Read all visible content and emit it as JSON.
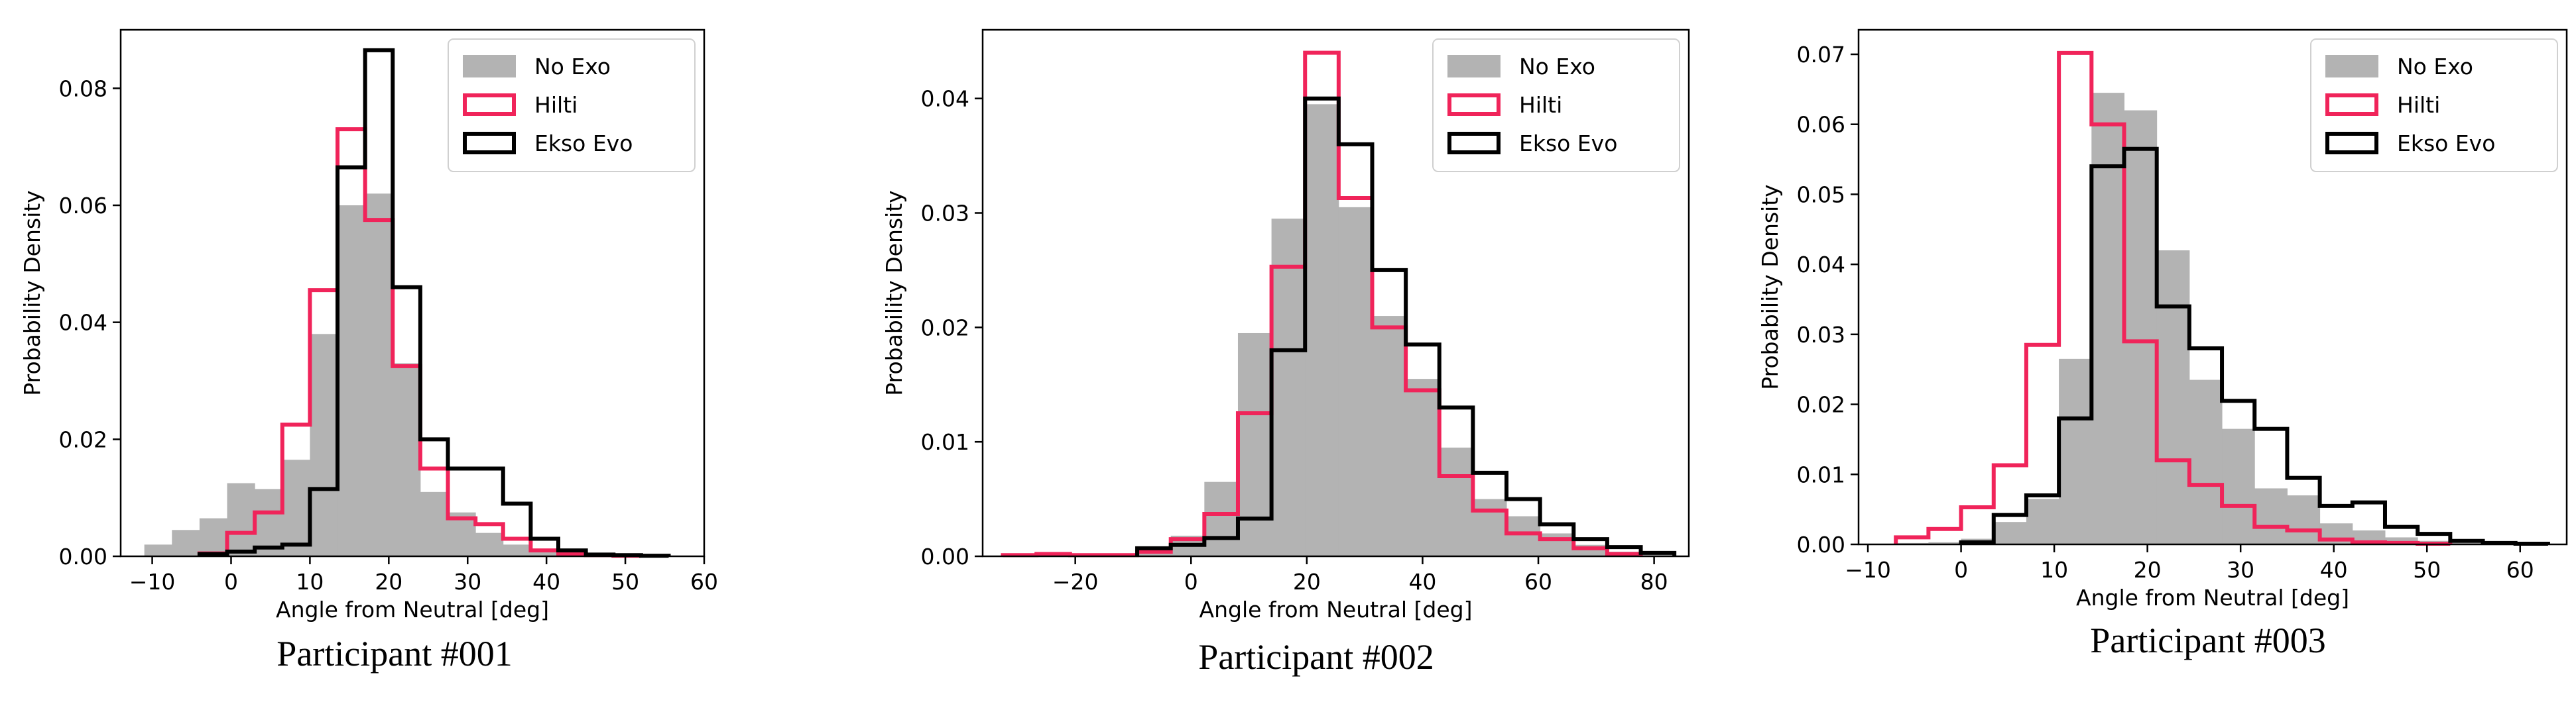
{
  "figure": {
    "colors": {
      "no_exo": "#b3b3b3",
      "hilti": "#f0245a",
      "ekso_evo": "#000000",
      "axis": "#000000"
    }
  },
  "chart_data": [
    {
      "type": "histogram",
      "caption": "Participant #001",
      "xlabel": "Angle from Neutral [deg]",
      "ylabel": "Probability Density",
      "xlim": [
        -14,
        60
      ],
      "ylim": [
        0,
        0.09
      ],
      "xticks": [
        -10,
        0,
        10,
        20,
        30,
        40,
        50,
        60
      ],
      "yticks": [
        0.0,
        0.02,
        0.04,
        0.06,
        0.08
      ],
      "ytick_labels": [
        "0.00",
        "0.02",
        "0.04",
        "0.06",
        "0.08"
      ],
      "legend_position": "upper right",
      "series": [
        {
          "name": "No Exo",
          "style": "filled",
          "color": "#b3b3b3",
          "edges": [
            -11,
            -7.5,
            -4,
            -0.5,
            3,
            6.5,
            10,
            13.5,
            17,
            20.5,
            24,
            27.5,
            31,
            34.5,
            38,
            41.5,
            45,
            48.5,
            52,
            55.5
          ],
          "values": [
            0.002,
            0.0045,
            0.0065,
            0.0125,
            0.0115,
            0.0165,
            0.038,
            0.06,
            0.062,
            0.033,
            0.011,
            0.0075,
            0.004,
            0.002,
            0.001,
            0.0005,
            0.0003,
            0.0002,
            0.0001
          ]
        },
        {
          "name": "Hilti",
          "style": "step",
          "color": "#f0245a",
          "edges": [
            -4,
            -0.5,
            3,
            6.5,
            10,
            13.5,
            17,
            20.5,
            24,
            27.5,
            31,
            34.5,
            38,
            41.5,
            45,
            48.5,
            52
          ],
          "values": [
            0.0005,
            0.004,
            0.0075,
            0.0225,
            0.0455,
            0.073,
            0.0575,
            0.0325,
            0.015,
            0.0065,
            0.0055,
            0.003,
            0.001,
            0.0004,
            0.0002,
            0.0001
          ]
        },
        {
          "name": "Ekso Evo",
          "style": "step",
          "color": "#000000",
          "edges": [
            -4,
            -0.5,
            3,
            6.5,
            10,
            13.5,
            17,
            20.5,
            24,
            27.5,
            31,
            34.5,
            38,
            41.5,
            45,
            48.5,
            52,
            55.5
          ],
          "values": [
            0.0004,
            0.0008,
            0.0015,
            0.002,
            0.0115,
            0.0665,
            0.0865,
            0.046,
            0.02,
            0.015,
            0.015,
            0.009,
            0.003,
            0.001,
            0.0003,
            0.0002,
            0.0001
          ]
        }
      ]
    },
    {
      "type": "histogram",
      "caption": "Participant #002",
      "xlabel": "Angle from Neutral [deg]",
      "ylabel": "Probability Density",
      "xlim": [
        -36,
        86
      ],
      "ylim": [
        0,
        0.046
      ],
      "xticks": [
        -20,
        0,
        20,
        40,
        60,
        80
      ],
      "yticks": [
        0.0,
        0.01,
        0.02,
        0.03,
        0.04
      ],
      "ytick_labels": [
        "0.00",
        "0.01",
        "0.02",
        "0.03",
        "0.04"
      ],
      "legend_position": "upper right",
      "series": [
        {
          "name": "No Exo",
          "style": "filled",
          "color": "#b3b3b3",
          "edges": [
            -32.5,
            -26.7,
            -20.9,
            -15.1,
            -9.3,
            -3.5,
            2.3,
            8.1,
            13.9,
            19.7,
            25.5,
            31.3,
            37.1,
            42.9,
            48.7,
            54.5,
            60.3,
            66.1,
            71.9,
            77.7,
            83.5
          ],
          "values": [
            0.0001,
            0.0001,
            0.0001,
            0.0001,
            0.0005,
            0.0018,
            0.0065,
            0.0195,
            0.0295,
            0.0395,
            0.0305,
            0.021,
            0.0155,
            0.0095,
            0.005,
            0.0035,
            0.002,
            0.001,
            0.0004,
            0.0001
          ]
        },
        {
          "name": "Hilti",
          "style": "step",
          "color": "#f0245a",
          "edges": [
            -32.5,
            -26.7,
            -20.9,
            -15.1,
            -9.3,
            -3.5,
            2.3,
            8.1,
            13.9,
            19.7,
            25.5,
            31.3,
            37.1,
            42.9,
            48.7,
            54.5,
            60.3,
            66.1,
            71.9,
            77.7
          ],
          "values": [
            0.0001,
            0.0002,
            0.0001,
            0.0001,
            0.0004,
            0.0015,
            0.0037,
            0.0125,
            0.0253,
            0.044,
            0.0313,
            0.02,
            0.0145,
            0.007,
            0.004,
            0.002,
            0.0015,
            0.0007,
            0.0002
          ]
        },
        {
          "name": "Ekso Evo",
          "style": "step",
          "color": "#000000",
          "edges": [
            -9.3,
            -3.5,
            2.3,
            8.1,
            13.9,
            19.7,
            25.5,
            31.3,
            37.1,
            42.9,
            48.7,
            54.5,
            60.3,
            66.1,
            71.9,
            77.7,
            83.5
          ],
          "values": [
            0.0007,
            0.001,
            0.0016,
            0.0033,
            0.018,
            0.04,
            0.036,
            0.025,
            0.0185,
            0.013,
            0.0073,
            0.005,
            0.0028,
            0.0015,
            0.0008,
            0.0003
          ]
        }
      ]
    },
    {
      "type": "histogram",
      "caption": "Participant #003",
      "xlabel": "Angle from Neutral [deg]",
      "ylabel": "Probability Density",
      "xlim": [
        -11,
        65
      ],
      "ylim": [
        0,
        0.0735
      ],
      "xticks": [
        -10,
        0,
        10,
        20,
        30,
        40,
        50,
        60
      ],
      "yticks": [
        0.0,
        0.01,
        0.02,
        0.03,
        0.04,
        0.05,
        0.06,
        0.07
      ],
      "ytick_labels": [
        "0.00",
        "0.01",
        "0.02",
        "0.03",
        "0.04",
        "0.05",
        "0.06",
        "0.07"
      ],
      "legend_position": "upper right",
      "series": [
        {
          "name": "No Exo",
          "style": "filled",
          "color": "#b3b3b3",
          "edges": [
            -7,
            -3.5,
            0,
            3.5,
            7,
            10.5,
            14,
            17.5,
            21,
            24.5,
            28,
            31.5,
            35,
            38.5,
            42,
            45.5,
            49,
            52.5,
            56,
            59.5
          ],
          "values": [
            0.0002,
            0.0003,
            0.0008,
            0.0032,
            0.0065,
            0.0265,
            0.0645,
            0.062,
            0.042,
            0.0235,
            0.0165,
            0.008,
            0.007,
            0.003,
            0.002,
            0.001,
            0.0005,
            0.0002,
            0.0001
          ]
        },
        {
          "name": "Hilti",
          "style": "step",
          "color": "#f0245a",
          "edges": [
            -7,
            -3.5,
            0,
            3.5,
            7,
            10.5,
            14,
            17.5,
            21,
            24.5,
            28,
            31.5,
            35,
            38.5,
            42,
            45.5,
            49,
            52.5
          ],
          "values": [
            0.001,
            0.0022,
            0.0053,
            0.0113,
            0.0285,
            0.0702,
            0.06,
            0.029,
            0.012,
            0.0085,
            0.0055,
            0.0025,
            0.002,
            0.0007,
            0.0003,
            0.0002,
            0.0001
          ]
        },
        {
          "name": "Ekso Evo",
          "style": "step",
          "color": "#000000",
          "edges": [
            0,
            3.5,
            7,
            10.5,
            14,
            17.5,
            21,
            24.5,
            28,
            31.5,
            35,
            38.5,
            42,
            45.5,
            49,
            52.5,
            56,
            59.5,
            63
          ],
          "values": [
            0.0003,
            0.0042,
            0.007,
            0.018,
            0.054,
            0.0565,
            0.034,
            0.028,
            0.0205,
            0.0165,
            0.0095,
            0.0055,
            0.006,
            0.0025,
            0.0015,
            0.0005,
            0.0002,
            0.0001
          ]
        }
      ]
    }
  ]
}
